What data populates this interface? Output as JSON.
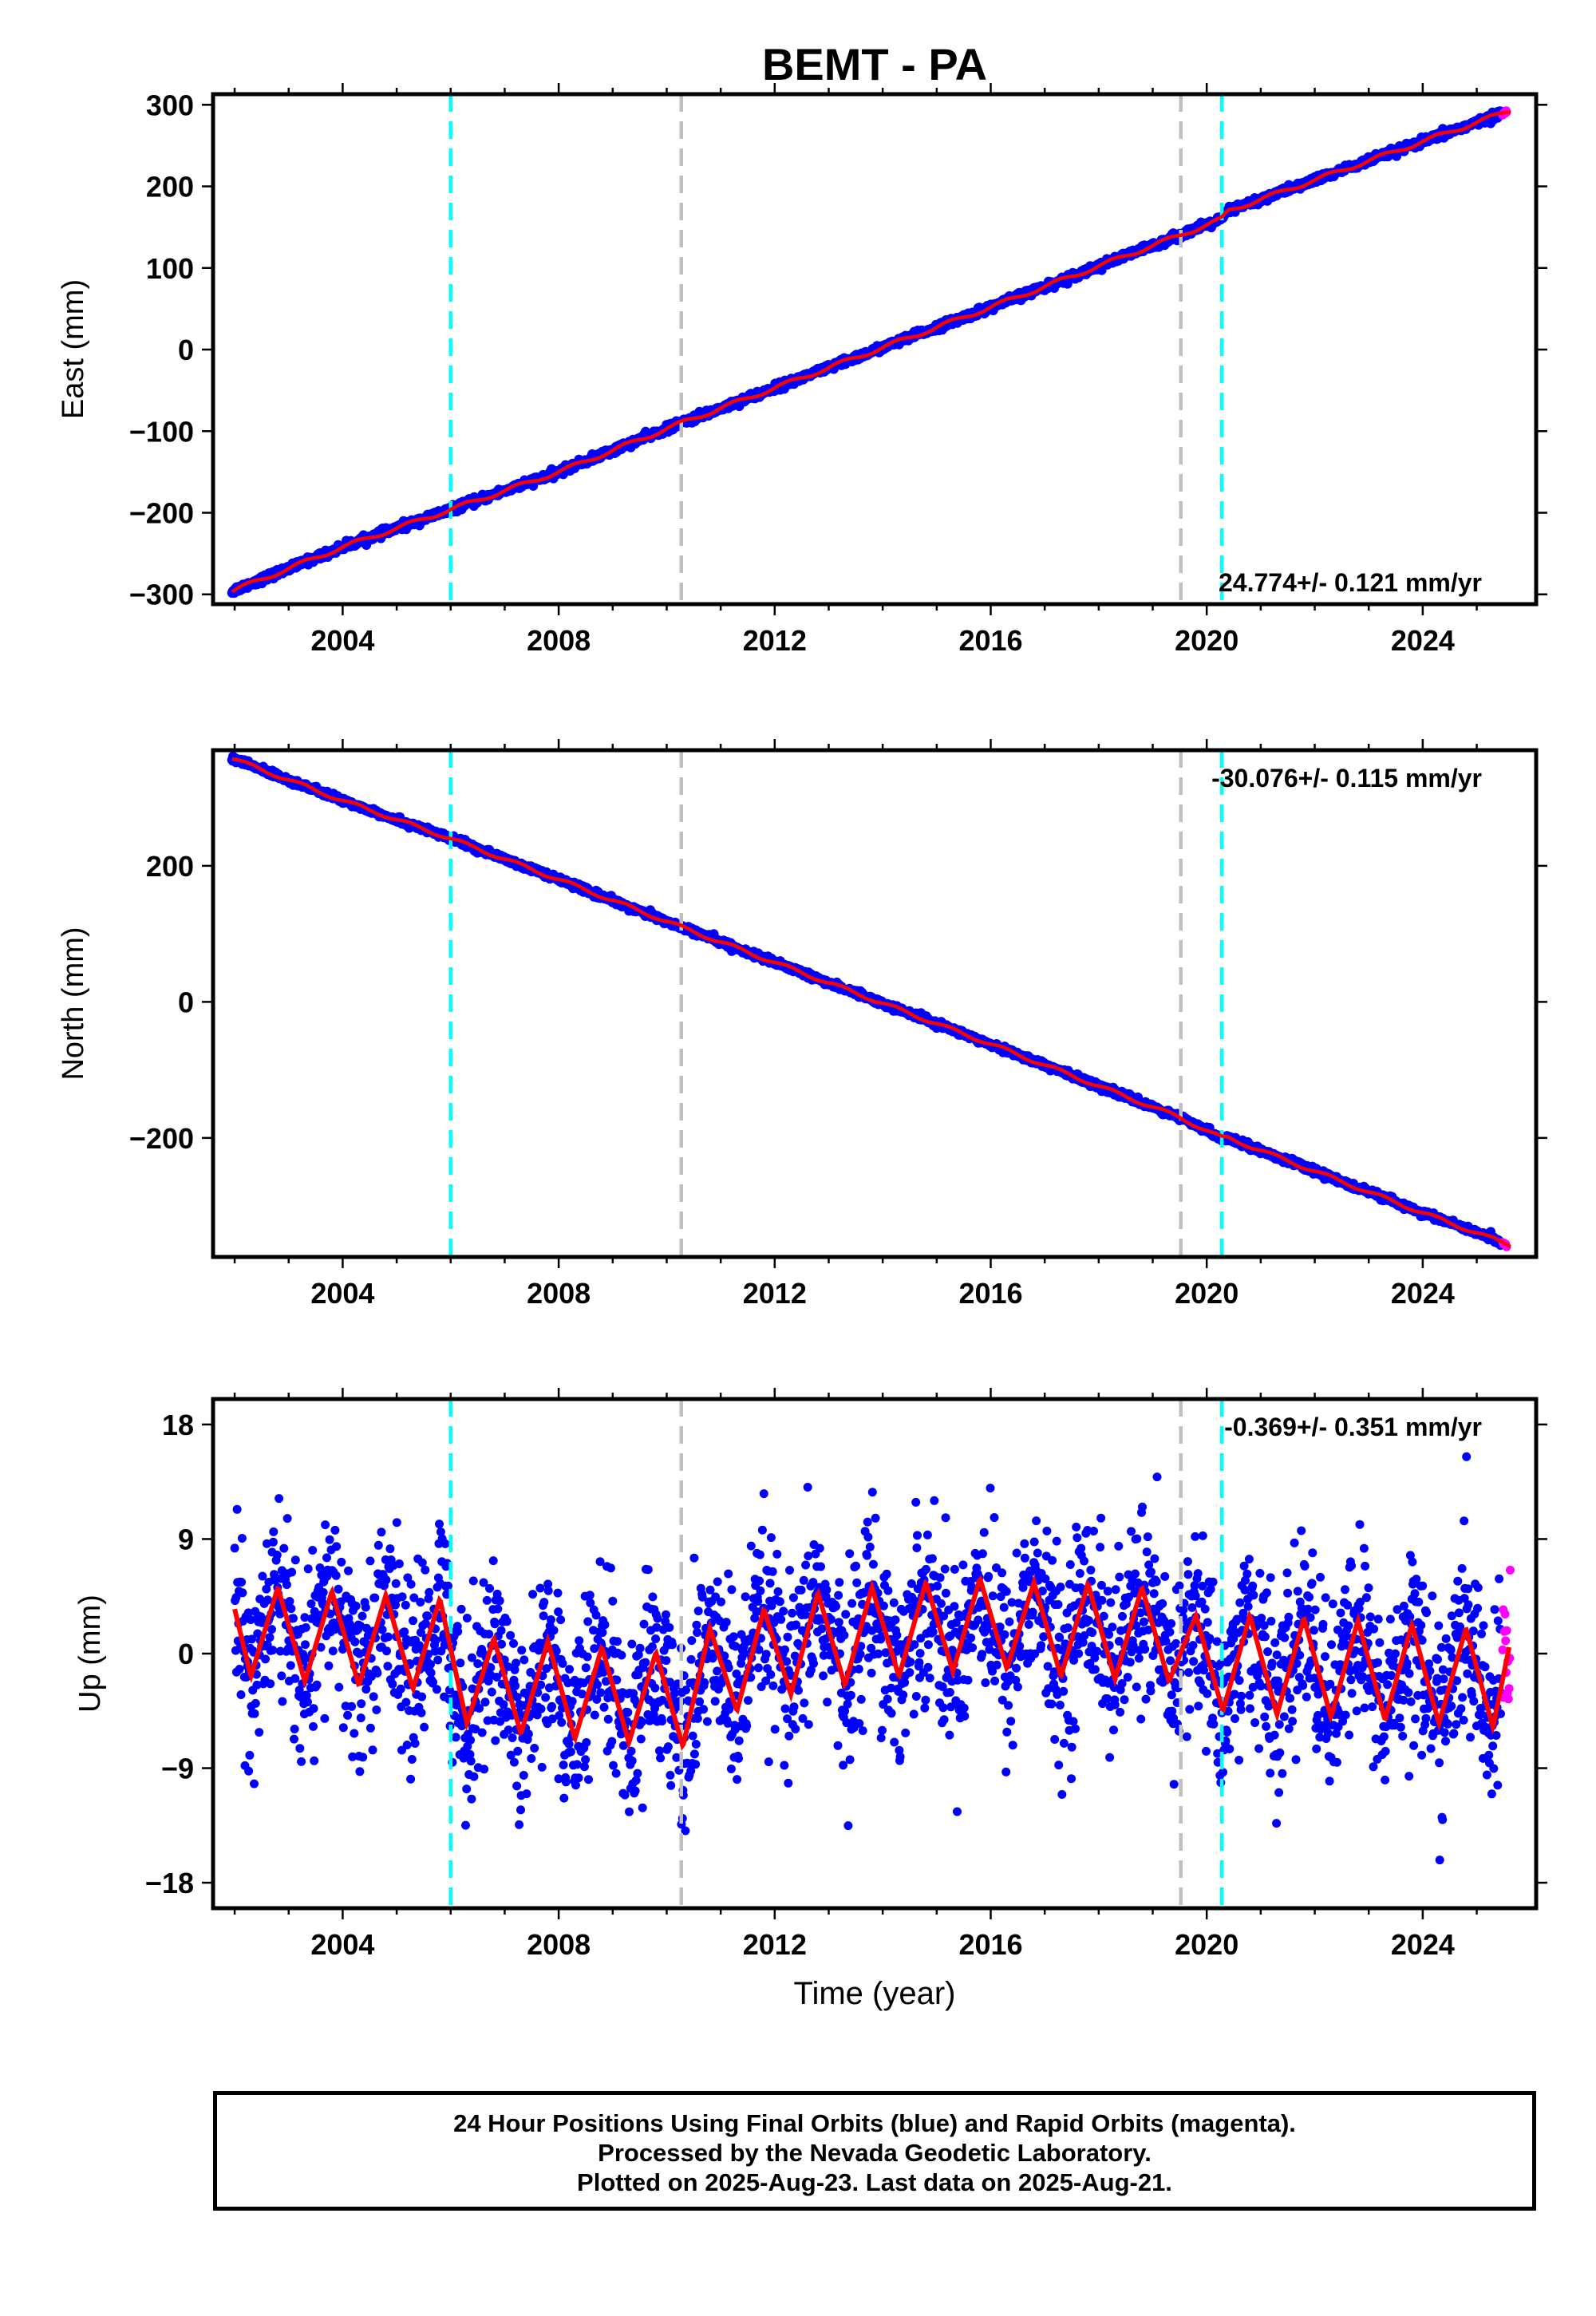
{
  "title": "BEMT - PA",
  "colors": {
    "final_orbits": "#0000ff",
    "rapid_orbits": "#ff00ff",
    "model": "#ff0000",
    "equipment_change": "#00ffff",
    "earthquake_or_other": "#c0c0c0"
  },
  "footer": {
    "line1": "24 Hour Positions Using Final Orbits (blue) and Rapid Orbits (magenta).",
    "line2": "Processed by the Nevada Geodetic Laboratory.",
    "line3": "Plotted on 2025-Aug-23. Last data on 2025-Aug-21."
  },
  "chart_data": [
    {
      "type": "scatter",
      "component": "east",
      "ylabel": "East (mm)",
      "xlabel": "",
      "xlim": [
        2001.6,
        2026.1
      ],
      "ylim": [
        -312,
        313
      ],
      "yticks": [
        -300,
        -200,
        -100,
        0,
        100,
        200,
        300
      ],
      "ytick_labels": [
        "−300",
        "−200",
        "−100",
        "0",
        "100",
        "200",
        "300"
      ],
      "xticks": [
        2004,
        2008,
        2012,
        2016,
        2020,
        2024
      ],
      "xtick_labels": [
        "2004",
        "2008",
        "2012",
        "2016",
        "2020",
        "2024"
      ],
      "grid": false,
      "rate_label": "24.774+/- 0.121 mm/yr",
      "rate_position": "bottom-right",
      "vertical_lines": [
        {
          "x": 2006.0,
          "color": "cyan"
        },
        {
          "x": 2010.27,
          "color": "gray"
        },
        {
          "x": 2019.52,
          "color": "gray"
        },
        {
          "x": 2020.28,
          "color": "cyan"
        }
      ],
      "series": [
        {
          "x": [
            2001.95,
            2004.0,
            2006.0,
            2008.0,
            2010.27,
            2012.0,
            2016.0,
            2019.5,
            2020.28,
            2020.4,
            2024.0,
            2025.62
          ],
          "values": [
            -296,
            -242,
            -196,
            -150,
            -90,
            -47,
            52,
            140,
            160,
            170,
            255,
            293
          ]
        }
      ]
    },
    {
      "type": "scatter",
      "component": "north",
      "ylabel": "North (mm)",
      "xlabel": "",
      "xlim": [
        2001.6,
        2026.1
      ],
      "ylim": [
        -375,
        370
      ],
      "yticks": [
        -200,
        0,
        200
      ],
      "ytick_labels": [
        "−200",
        "0",
        "200"
      ],
      "xticks": [
        2004,
        2008,
        2012,
        2016,
        2020,
        2024
      ],
      "xtick_labels": [
        "2004",
        "2008",
        "2012",
        "2016",
        "2020",
        "2024"
      ],
      "grid": false,
      "rate_label": "-30.076+/- 0.115 mm/yr",
      "rate_position": "top-right",
      "vertical_lines": [
        {
          "x": 2006.0,
          "color": "cyan"
        },
        {
          "x": 2010.27,
          "color": "gray"
        },
        {
          "x": 2019.52,
          "color": "gray"
        },
        {
          "x": 2020.28,
          "color": "cyan"
        }
      ],
      "series": [
        {
          "x": [
            2001.95,
            2004.0,
            2006.0,
            2008.0,
            2010.27,
            2012.0,
            2016.0,
            2019.5,
            2020.28,
            2020.4,
            2024.0,
            2025.62
          ],
          "values": [
            358,
            296,
            240,
            180,
            110,
            58,
            -62,
            -170,
            -200,
            -200,
            -310,
            -358
          ]
        }
      ]
    },
    {
      "type": "scatter",
      "component": "up",
      "ylabel": "Up (mm)",
      "xlabel": "Time (year)",
      "xlim": [
        2001.6,
        2026.1
      ],
      "ylim": [
        -20,
        20
      ],
      "yticks": [
        -18,
        -9,
        0,
        9,
        18
      ],
      "ytick_labels": [
        "−18",
        "−9",
        "0",
        "9",
        "18"
      ],
      "xticks": [
        2004,
        2008,
        2012,
        2016,
        2020,
        2024
      ],
      "xtick_labels": [
        "2004",
        "2008",
        "2012",
        "2016",
        "2020",
        "2024"
      ],
      "grid": false,
      "rate_label": "-0.369+/- 0.351 mm/yr",
      "rate_position": "top-right",
      "vertical_lines": [
        {
          "x": 2006.0,
          "color": "cyan"
        },
        {
          "x": 2010.27,
          "color": "gray"
        },
        {
          "x": 2019.52,
          "color": "gray"
        },
        {
          "x": 2020.28,
          "color": "cyan"
        }
      ],
      "series": [
        {
          "x": [
            2002.0,
            2002.3,
            2002.8,
            2003.3,
            2003.8,
            2004.3,
            2004.8,
            2005.3,
            2005.8,
            2006.3,
            2006.8,
            2007.3,
            2007.8,
            2008.3,
            2008.8,
            2009.3,
            2009.8,
            2010.3,
            2010.8,
            2011.3,
            2011.8,
            2012.3,
            2012.8,
            2013.3,
            2013.8,
            2014.3,
            2014.8,
            2015.3,
            2015.8,
            2016.3,
            2016.8,
            2017.3,
            2017.8,
            2018.3,
            2018.8,
            2019.3,
            2019.8,
            2020.3,
            2020.8,
            2021.3,
            2021.8,
            2022.3,
            2022.8,
            2023.3,
            2023.8,
            2024.3,
            2024.8,
            2025.3,
            2025.6
          ],
          "values": [
            3.5,
            -1.8,
            5.2,
            -2.2,
            4.9,
            -2.5,
            4.6,
            -2.8,
            4.3,
            -5.5,
            1.2,
            -6.3,
            1.0,
            -6.7,
            0.5,
            -7.0,
            0.1,
            -7.3,
            2.0,
            -4.5,
            3.5,
            -3.2,
            4.8,
            -2.5,
            5.2,
            -1.8,
            5.6,
            -1.4,
            5.9,
            -1.2,
            5.6,
            -1.8,
            5.5,
            -2.0,
            5.2,
            -2.2,
            3.0,
            -4.5,
            3.0,
            -4.8,
            2.8,
            -5.0,
            2.6,
            -5.2,
            2.3,
            -5.5,
            2.0,
            -5.8,
            0.5
          ]
        }
      ]
    }
  ]
}
